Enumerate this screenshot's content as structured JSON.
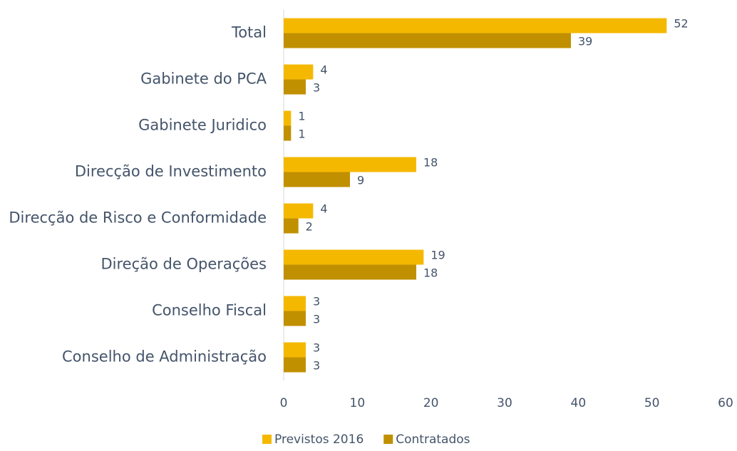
{
  "chart_data": {
    "type": "hbar",
    "categories": [
      "Total",
      "Gabinete do PCA",
      "Gabinete Juridico",
      "Direcção de Investimento",
      "Direcção de Risco e Conformidade",
      "Direção de Operações",
      "Conselho Fiscal",
      "Conselho de Administração"
    ],
    "series": [
      {
        "name": "Previstos 2016",
        "color": "#f5b800",
        "values": [
          52,
          4,
          1,
          18,
          4,
          19,
          3,
          3
        ]
      },
      {
        "name": "Contratados",
        "color": "#c09000",
        "values": [
          39,
          3,
          1,
          9,
          2,
          18,
          3,
          3
        ]
      }
    ],
    "xlim": [
      0,
      60
    ],
    "xticks": [
      0,
      10,
      20,
      30,
      40,
      50,
      60
    ],
    "legend": "bottom"
  }
}
